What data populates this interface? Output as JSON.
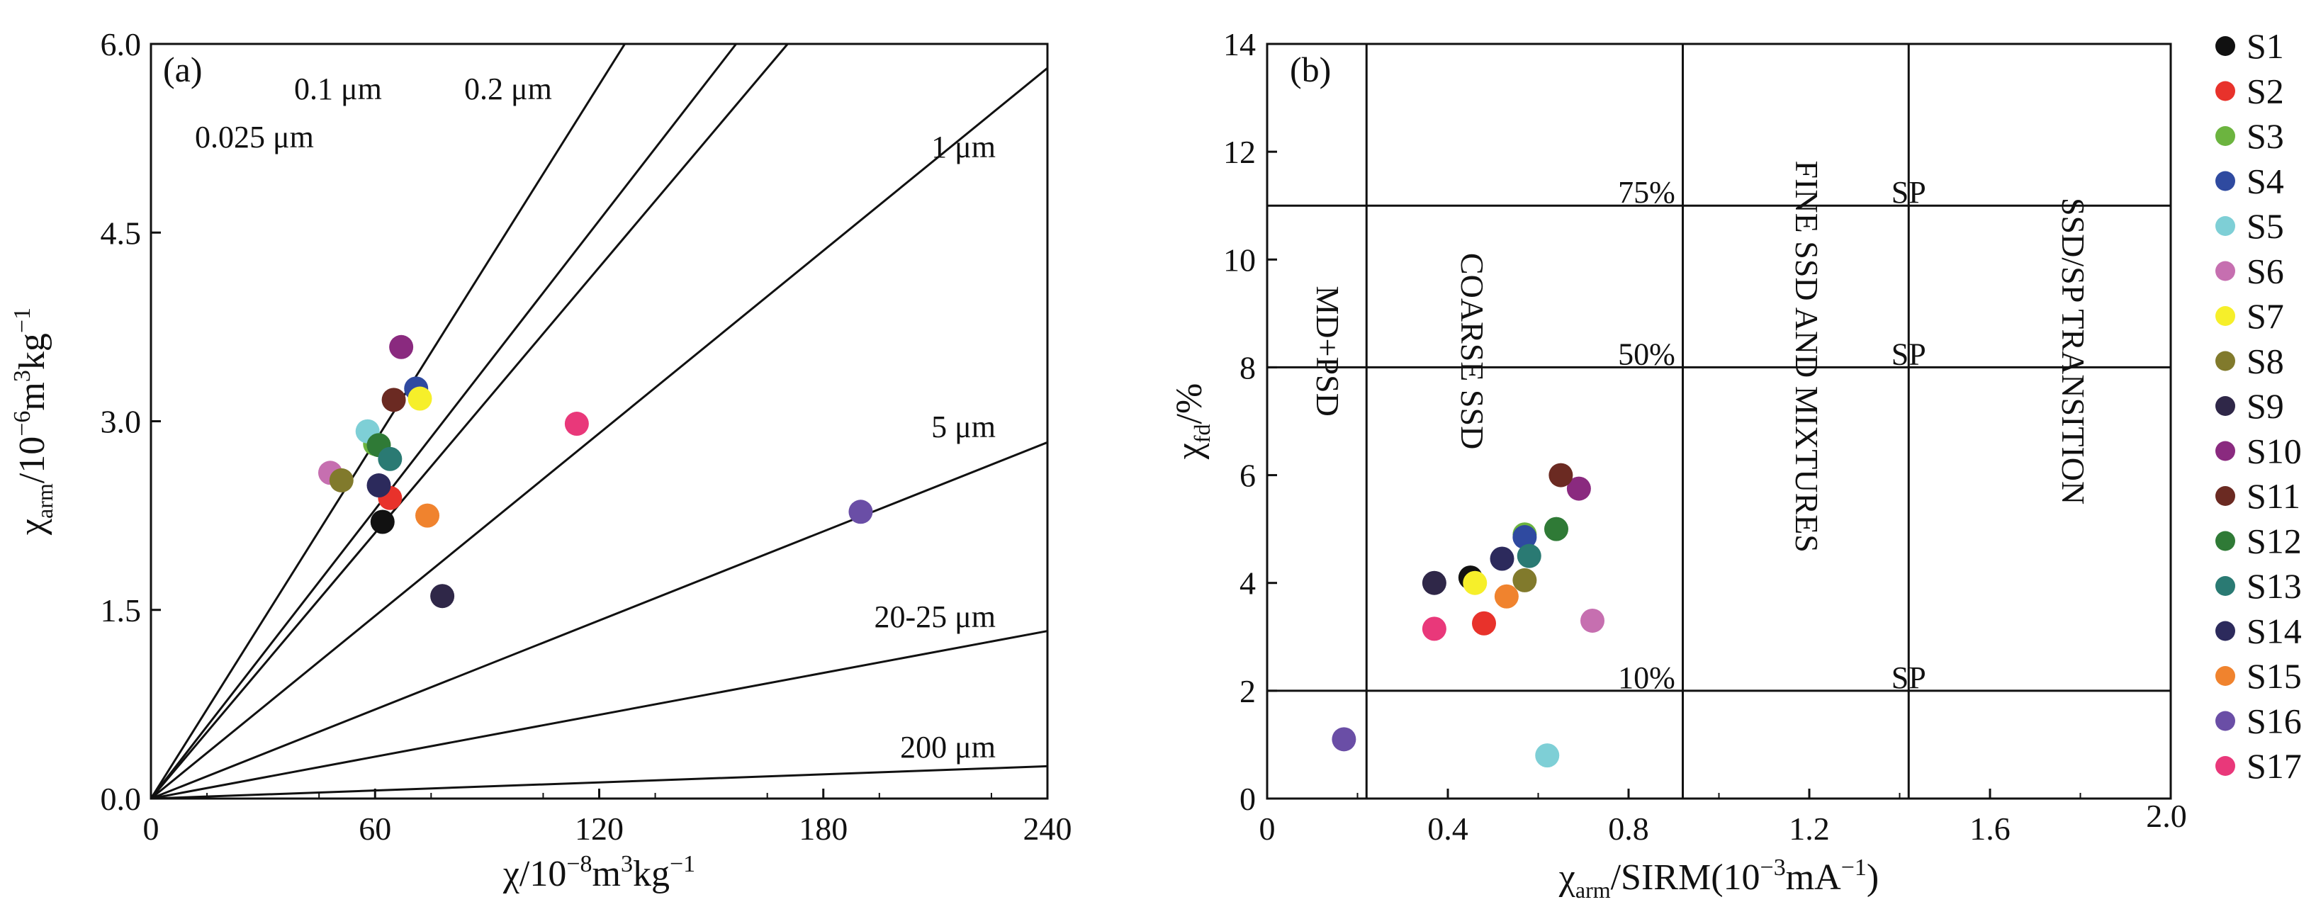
{
  "chart_data": [
    {
      "type": "scatter",
      "panel_label": "(a)",
      "xlabel_main": "χ/10",
      "xlabel_sup1": "−8",
      "xlabel_mid": "m",
      "xlabel_sup2": "3",
      "xlabel_end": "kg",
      "xlabel_sup3": "−1",
      "ylabel_main": "χ",
      "ylabel_sub": "arm",
      "ylabel_mid": "/10",
      "ylabel_sup1": "−6",
      "ylabel_mid2": "m",
      "ylabel_sup2": "3",
      "ylabel_end": "kg",
      "ylabel_sup3": "−1",
      "xlim": [
        0,
        240
      ],
      "ylim": [
        0,
        6
      ],
      "xticks": [
        "0",
        "60",
        "120",
        "180",
        "240"
      ],
      "xtick_values": [
        0,
        60,
        120,
        180,
        240
      ],
      "yticks": [
        "0.0",
        "1.5",
        "3.0",
        "4.5",
        "6.0"
      ],
      "ytick_values": [
        0,
        1.5,
        3,
        4.5,
        6
      ],
      "grain_lines": [
        {
          "label": "0.025 μm",
          "slope": 0.0473
        },
        {
          "label": "0.1 μm",
          "slope": 0.0383
        },
        {
          "label": "0.2 μm",
          "slope": 0.0352
        },
        {
          "label": "1 μm",
          "slope": 0.0242
        },
        {
          "label": "5 μm",
          "slope": 0.0118
        },
        {
          "label": "20-25 μm",
          "slope": 0.00555
        },
        {
          "label": "200 μm",
          "slope": 0.00107
        }
      ],
      "points": [
        {
          "name": "S1",
          "x": 62,
          "y": 2.2
        },
        {
          "name": "S2",
          "x": 64,
          "y": 2.39
        },
        {
          "name": "S3",
          "x": 60,
          "y": 2.82
        },
        {
          "name": "S4",
          "x": 71,
          "y": 3.26
        },
        {
          "name": "S5",
          "x": 58,
          "y": 2.92
        },
        {
          "name": "S6",
          "x": 48,
          "y": 2.59
        },
        {
          "name": "S7",
          "x": 72,
          "y": 3.18
        },
        {
          "name": "S8",
          "x": 51,
          "y": 2.53
        },
        {
          "name": "S9",
          "x": 78,
          "y": 1.61
        },
        {
          "name": "S10",
          "x": 67,
          "y": 3.59
        },
        {
          "name": "S11",
          "x": 65,
          "y": 3.17
        },
        {
          "name": "S12",
          "x": 61,
          "y": 2.81
        },
        {
          "name": "S13",
          "x": 64,
          "y": 2.7
        },
        {
          "name": "S14",
          "x": 61,
          "y": 2.49
        },
        {
          "name": "S15",
          "x": 74,
          "y": 2.25
        },
        {
          "name": "S16",
          "x": 190,
          "y": 2.28
        },
        {
          "name": "S17",
          "x": 114,
          "y": 2.98
        }
      ]
    },
    {
      "type": "scatter",
      "panel_label": "(b)",
      "xlabel_main": "χ",
      "xlabel_sub": "arm",
      "xlabel_end": "/SIRM(10",
      "xlabel_sup1": "−3",
      "xlabel_end2": "mA",
      "xlabel_sup2": "−1",
      "xlabel_close": ")",
      "ylabel_main": "χ",
      "ylabel_sub": "fd",
      "ylabel_end": "/%",
      "xlim": [
        0,
        2.0
      ],
      "ylim": [
        0,
        14
      ],
      "xticks": [
        "0",
        "0.4",
        "0.8",
        "1.2",
        "1.6",
        "2.0"
      ],
      "xtick_values": [
        0,
        0.4,
        0.8,
        1.2,
        1.6,
        2.0
      ],
      "yticks": [
        "0",
        "2",
        "4",
        "6",
        "8",
        "10",
        "12",
        "14"
      ],
      "ytick_values": [
        0,
        2,
        4,
        6,
        8,
        10,
        12,
        14
      ],
      "vlines": [
        0.22,
        0.92,
        1.42
      ],
      "hlines": [
        2,
        8,
        11
      ],
      "hline_labels": [
        {
          "value": 11,
          "pct": "75%",
          "sp": "SP"
        },
        {
          "value": 8,
          "pct": "50%",
          "sp": "SP"
        },
        {
          "value": 2,
          "pct": "10%",
          "sp": "SP"
        }
      ],
      "regions": [
        "MD+PSD",
        "COARSE SSD",
        "FINE SSD AND MIXTURES",
        "SSD/SP TRANSITION"
      ],
      "points": [
        {
          "name": "S1",
          "x": 0.45,
          "y": 4.1
        },
        {
          "name": "S2",
          "x": 0.48,
          "y": 3.25
        },
        {
          "name": "S3",
          "x": 0.57,
          "y": 4.9
        },
        {
          "name": "S4",
          "x": 0.57,
          "y": 4.85
        },
        {
          "name": "S5",
          "x": 0.62,
          "y": 0.8
        },
        {
          "name": "S6",
          "x": 0.72,
          "y": 3.3
        },
        {
          "name": "S7",
          "x": 0.46,
          "y": 4.0
        },
        {
          "name": "S8",
          "x": 0.57,
          "y": 4.05
        },
        {
          "name": "S9",
          "x": 0.37,
          "y": 4.0
        },
        {
          "name": "S10",
          "x": 0.69,
          "y": 5.75
        },
        {
          "name": "S11",
          "x": 0.65,
          "y": 6.0
        },
        {
          "name": "S12",
          "x": 0.64,
          "y": 5.0
        },
        {
          "name": "S13",
          "x": 0.58,
          "y": 4.5
        },
        {
          "name": "S14",
          "x": 0.52,
          "y": 4.45
        },
        {
          "name": "S15",
          "x": 0.53,
          "y": 3.75
        },
        {
          "name": "S16",
          "x": 0.17,
          "y": 1.1
        },
        {
          "name": "S17",
          "x": 0.37,
          "y": 3.15
        }
      ]
    }
  ],
  "legend": [
    {
      "name": "S1",
      "color": "#111111"
    },
    {
      "name": "S2",
      "color": "#e8322b"
    },
    {
      "name": "S3",
      "color": "#6cb43f"
    },
    {
      "name": "S4",
      "color": "#2f4aa0"
    },
    {
      "name": "S5",
      "color": "#7ecfd6"
    },
    {
      "name": "S6",
      "color": "#c66fb0"
    },
    {
      "name": "S7",
      "color": "#f6ef2a"
    },
    {
      "name": "S8",
      "color": "#817a2c"
    },
    {
      "name": "S9",
      "color": "#2f2748"
    },
    {
      "name": "S10",
      "color": "#8a2a7f"
    },
    {
      "name": "S11",
      "color": "#6b2a22"
    },
    {
      "name": "S12",
      "color": "#2f7a36"
    },
    {
      "name": "S13",
      "color": "#2a7a73"
    },
    {
      "name": "S14",
      "color": "#2c2a5c"
    },
    {
      "name": "S15",
      "color": "#f0832e"
    },
    {
      "name": "S16",
      "color": "#6a4ea6"
    },
    {
      "name": "S17",
      "color": "#e9387a"
    }
  ]
}
